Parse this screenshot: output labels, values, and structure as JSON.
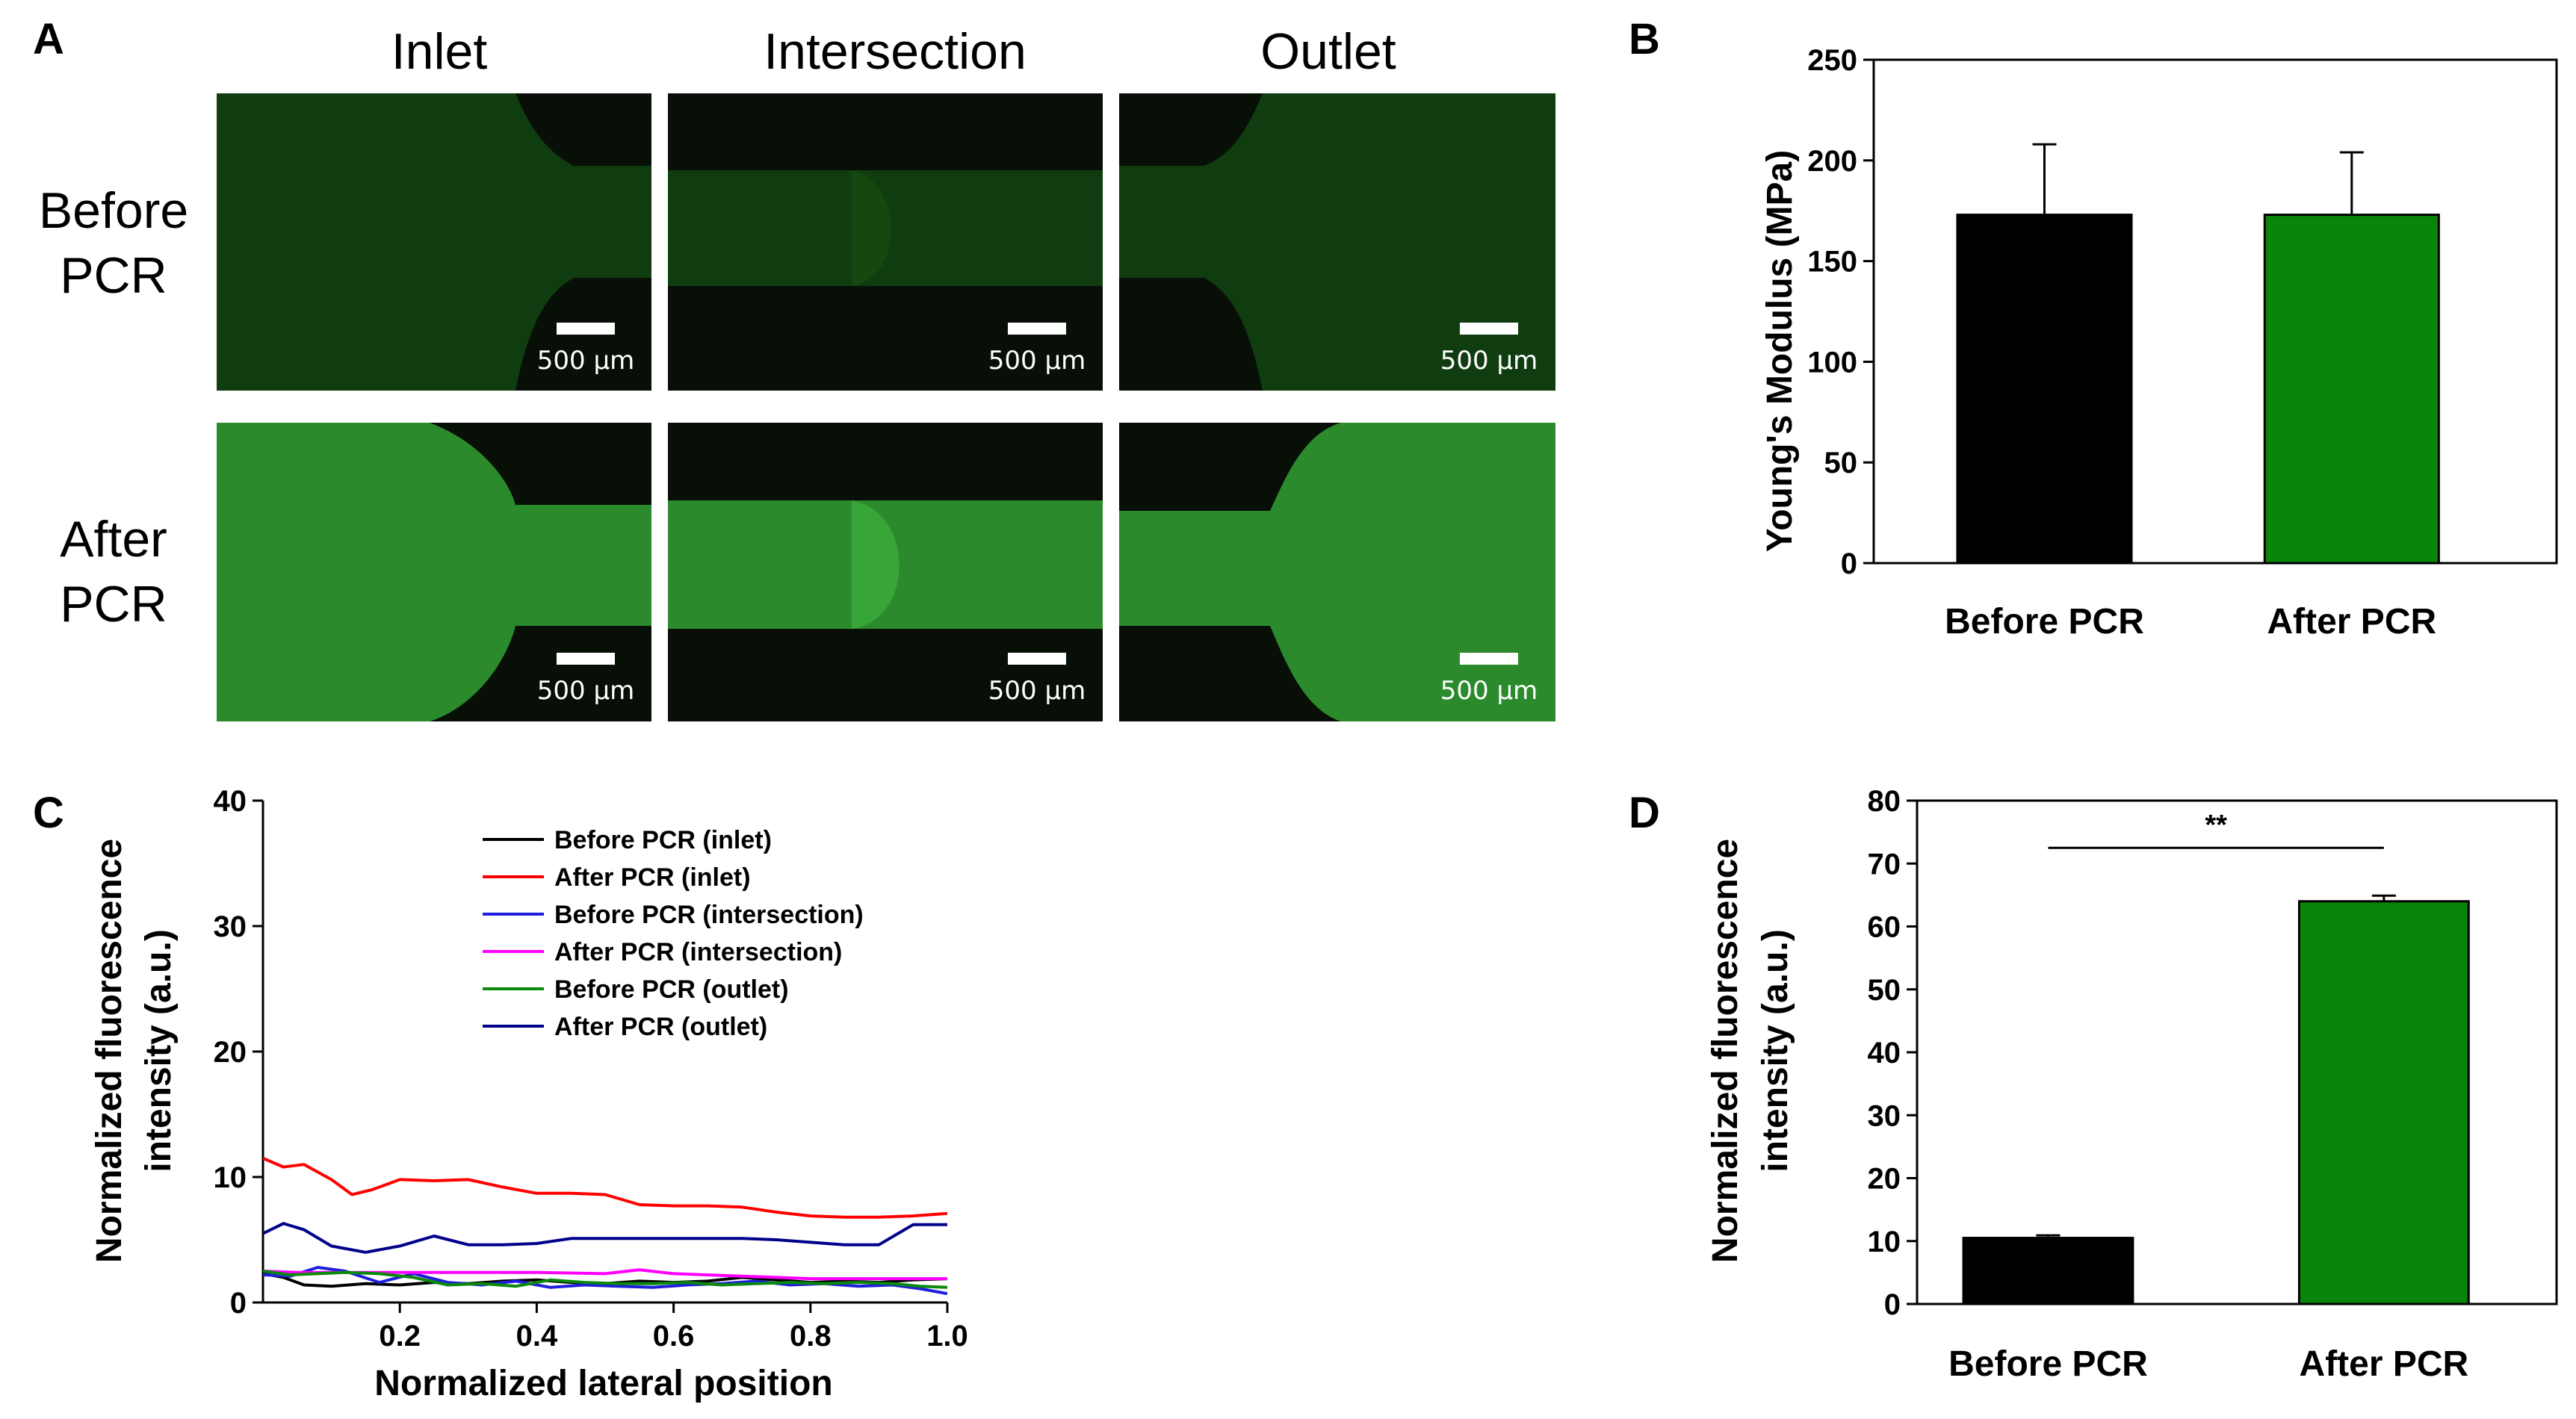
{
  "figure": {
    "panel_labels": {
      "A": "A",
      "B": "B",
      "C": "C",
      "D": "D"
    },
    "micrographs": {
      "columns": [
        "Inlet",
        "Intersection",
        "Outlet"
      ],
      "rows": [
        {
          "line1": "Before",
          "line2": "PCR"
        },
        {
          "line1": "After",
          "line2": "PCR"
        }
      ],
      "scale_bar": "500 µm",
      "colors": {
        "before_fill": "#103d10",
        "after_fill": "#2b8a2b",
        "background": "#070f07"
      }
    }
  },
  "chart_data": [
    {
      "id": "B",
      "type": "bar",
      "title": "",
      "categories": [
        "Before PCR",
        "After PCR"
      ],
      "values": [
        173,
        173
      ],
      "errors": [
        35,
        31
      ],
      "colors": [
        "#000000",
        "#0a840a"
      ],
      "xlabel": "",
      "ylabel": "Young's Modulus (MPa)",
      "ylim": [
        0,
        250
      ],
      "yticks": [
        0,
        50,
        100,
        150,
        200,
        250
      ]
    },
    {
      "id": "C",
      "type": "line",
      "title": "",
      "xlabel": "Normalized lateral position",
      "ylabel_line1": "Normalized fluorescence",
      "ylabel_line2": "intensity (a.u.)",
      "xlim": [
        0,
        1.0
      ],
      "ylim": [
        0,
        40
      ],
      "xticks": [
        "0.2",
        "0.4",
        "0.6",
        "0.8",
        "1.0"
      ],
      "xtick_values": [
        0.2,
        0.4,
        0.6,
        0.8,
        1.0
      ],
      "yticks": [
        0,
        10,
        20,
        30,
        40
      ],
      "legend_position": "top-center",
      "series": [
        {
          "name": "Before PCR (inlet)",
          "color": "#000000",
          "x": [
            0,
            0.03,
            0.06,
            0.1,
            0.15,
            0.2,
            0.25,
            0.3,
            0.35,
            0.4,
            0.45,
            0.5,
            0.55,
            0.6,
            0.65,
            0.7,
            0.75,
            0.8,
            0.85,
            0.9,
            0.95,
            1.0
          ],
          "y": [
            2.3,
            2.0,
            1.4,
            1.3,
            1.5,
            1.4,
            1.6,
            1.5,
            1.7,
            1.8,
            1.6,
            1.5,
            1.7,
            1.6,
            1.7,
            2.0,
            1.8,
            1.6,
            1.7,
            1.6,
            1.8,
            1.9
          ]
        },
        {
          "name": "After PCR (inlet)",
          "color": "#ff0000",
          "x": [
            0,
            0.03,
            0.06,
            0.1,
            0.13,
            0.16,
            0.2,
            0.25,
            0.3,
            0.35,
            0.4,
            0.45,
            0.5,
            0.55,
            0.6,
            0.65,
            0.7,
            0.75,
            0.8,
            0.85,
            0.9,
            0.95,
            1.0
          ],
          "y": [
            11.5,
            10.8,
            11.0,
            9.8,
            8.6,
            9.0,
            9.8,
            9.7,
            9.8,
            9.2,
            8.7,
            8.7,
            8.6,
            7.8,
            7.7,
            7.7,
            7.6,
            7.2,
            6.9,
            6.8,
            6.8,
            6.9,
            7.1
          ]
        },
        {
          "name": "Before PCR (intersection)",
          "color": "#1e1edc",
          "x": [
            0,
            0.04,
            0.08,
            0.12,
            0.17,
            0.22,
            0.27,
            0.32,
            0.37,
            0.42,
            0.47,
            0.52,
            0.57,
            0.62,
            0.67,
            0.72,
            0.77,
            0.82,
            0.87,
            0.92,
            0.96,
            1.0
          ],
          "y": [
            2.2,
            2.1,
            2.8,
            2.5,
            1.6,
            2.3,
            1.6,
            1.4,
            1.7,
            1.2,
            1.4,
            1.3,
            1.2,
            1.4,
            1.5,
            1.7,
            1.4,
            1.5,
            1.3,
            1.4,
            1.1,
            0.7
          ]
        },
        {
          "name": "After PCR (intersection)",
          "color": "#ff00ff",
          "x": [
            0,
            0.05,
            0.1,
            0.2,
            0.3,
            0.4,
            0.5,
            0.55,
            0.6,
            0.7,
            0.8,
            0.9,
            1.0
          ],
          "y": [
            2.5,
            2.4,
            2.4,
            2.4,
            2.4,
            2.4,
            2.3,
            2.6,
            2.3,
            2.1,
            1.9,
            1.9,
            1.9
          ]
        },
        {
          "name": "Before PCR (outlet)",
          "color": "#0a8a0a",
          "x": [
            0,
            0.04,
            0.08,
            0.12,
            0.17,
            0.22,
            0.27,
            0.32,
            0.37,
            0.42,
            0.47,
            0.52,
            0.57,
            0.62,
            0.67,
            0.72,
            0.77,
            0.82,
            0.87,
            0.92,
            0.96,
            1.0
          ],
          "y": [
            2.5,
            2.2,
            2.3,
            2.4,
            2.3,
            2.0,
            1.4,
            1.5,
            1.3,
            1.8,
            1.6,
            1.5,
            1.5,
            1.6,
            1.4,
            1.5,
            1.6,
            1.5,
            1.6,
            1.5,
            1.3,
            1.2
          ]
        },
        {
          "name": "After PCR (outlet)",
          "color": "#00008b",
          "x": [
            0,
            0.03,
            0.06,
            0.1,
            0.15,
            0.2,
            0.25,
            0.3,
            0.35,
            0.4,
            0.45,
            0.5,
            0.55,
            0.6,
            0.65,
            0.7,
            0.75,
            0.8,
            0.85,
            0.9,
            0.95,
            1.0
          ],
          "y": [
            5.5,
            6.3,
            5.8,
            4.5,
            4.0,
            4.5,
            5.3,
            4.6,
            4.6,
            4.7,
            5.1,
            5.1,
            5.1,
            5.1,
            5.1,
            5.1,
            5.0,
            4.8,
            4.6,
            4.6,
            6.2,
            6.2
          ]
        }
      ]
    },
    {
      "id": "D",
      "type": "bar",
      "title": "",
      "categories": [
        "Before PCR",
        "After PCR"
      ],
      "values": [
        10.5,
        64
      ],
      "errors": [
        0.4,
        0.9
      ],
      "colors": [
        "#000000",
        "#0a840a"
      ],
      "xlabel": "",
      "ylabel_line1": "Normalized fluorescence",
      "ylabel_line2": "intensity (a.u.)",
      "ylim": [
        0,
        80
      ],
      "yticks": [
        0,
        10,
        20,
        30,
        40,
        50,
        60,
        70,
        80
      ],
      "significance": "**"
    }
  ]
}
